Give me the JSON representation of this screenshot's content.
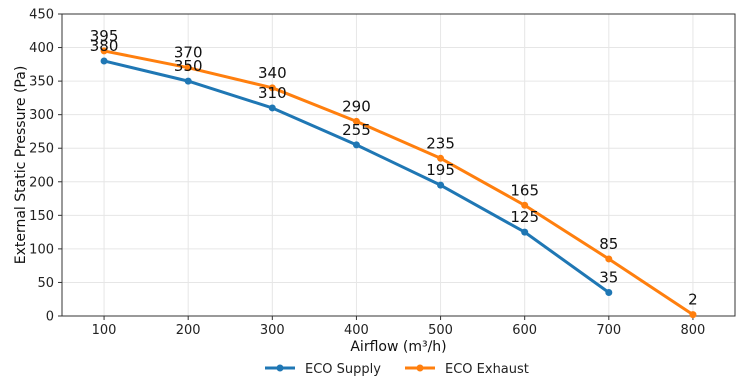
{
  "chart_data": {
    "type": "line",
    "xlabel": "Airflow (m³/h)",
    "ylabel": "External Static Pressure (Pa)",
    "xlim": [
      50,
      850
    ],
    "ylim": [
      0,
      450
    ],
    "xticks": [
      100,
      200,
      300,
      400,
      500,
      600,
      700,
      800
    ],
    "yticks": [
      0,
      50,
      100,
      150,
      200,
      250,
      300,
      350,
      400,
      450
    ],
    "grid": true,
    "legend_position": "bottom-center",
    "series": [
      {
        "name": "ECO Supply",
        "color": "#1f77b4",
        "x": [
          100,
          200,
          300,
          400,
          500,
          600,
          700
        ],
        "y": [
          380,
          350,
          310,
          255,
          195,
          125,
          35
        ]
      },
      {
        "name": "ECO Exhaust",
        "color": "#ff7f0e",
        "x": [
          100,
          200,
          300,
          400,
          500,
          600,
          700,
          800
        ],
        "y": [
          395,
          370,
          340,
          290,
          235,
          165,
          85,
          2
        ]
      }
    ]
  }
}
